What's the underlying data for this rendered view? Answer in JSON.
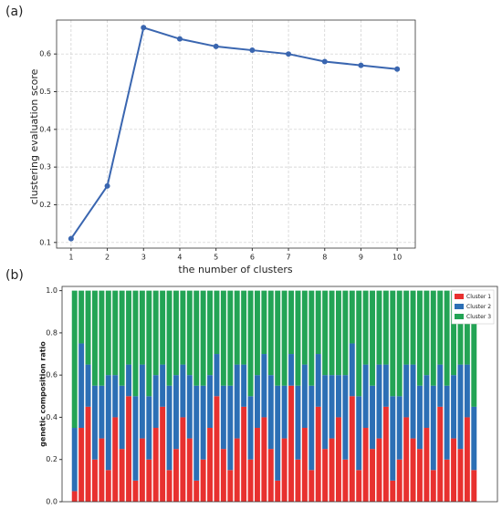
{
  "chart_data": [
    {
      "type": "line",
      "panel_label": "(a)",
      "xlabel": "the number of clusters",
      "ylabel": "clustering evaluation score",
      "x": [
        1,
        2,
        3,
        4,
        5,
        6,
        7,
        8,
        9,
        10
      ],
      "values": [
        0.11,
        0.25,
        0.67,
        0.64,
        0.62,
        0.61,
        0.6,
        0.58,
        0.57,
        0.56
      ],
      "color": "#3a66b0",
      "xlim": [
        0.6,
        10.5
      ],
      "ylim": [
        0.085,
        0.69
      ],
      "xticks": [
        1,
        2,
        3,
        4,
        5,
        6,
        7,
        8,
        9,
        10
      ],
      "yticks": [
        0.1,
        0.2,
        0.3,
        0.4,
        0.5,
        0.6
      ],
      "grid": true
    },
    {
      "type": "stacked_bar",
      "panel_label": "(b)",
      "ylabel": "genetic composition ratio",
      "categories": [
        null,
        null,
        null,
        null,
        null,
        null,
        null,
        null,
        null,
        null,
        null,
        null,
        null,
        null,
        null,
        null,
        null,
        null,
        null,
        null,
        null,
        null,
        null,
        null,
        null,
        null,
        null,
        null,
        null,
        null,
        null,
        null,
        null,
        null,
        null,
        null,
        null,
        null,
        null,
        null,
        null,
        null,
        null,
        null,
        null,
        null,
        null,
        null,
        null,
        null,
        null,
        null,
        null,
        null,
        null,
        null,
        null,
        null,
        null,
        null
      ],
      "series": [
        {
          "name": "Cluster 1",
          "color": "#e8312f",
          "values": [
            0.05,
            0.35,
            0.45,
            0.2,
            0.3,
            0.15,
            0.4,
            0.25,
            0.5,
            0.1,
            0.3,
            0.2,
            0.35,
            0.45,
            0.15,
            0.25,
            0.4,
            0.3,
            0.1,
            0.2,
            0.35,
            0.5,
            0.25,
            0.15,
            0.3,
            0.45,
            0.2,
            0.35,
            0.4,
            0.25,
            0.1,
            0.3,
            0.55,
            0.2,
            0.35,
            0.15,
            0.45,
            0.25,
            0.3,
            0.4,
            0.2,
            0.5,
            0.15,
            0.35,
            0.25,
            0.3,
            0.45,
            0.1,
            0.2,
            0.4,
            0.3,
            0.25,
            0.35,
            0.15,
            0.45,
            0.2,
            0.3,
            0.25,
            0.4,
            0.15
          ]
        },
        {
          "name": "Cluster 2",
          "color": "#2c6fb5",
          "values": [
            0.3,
            0.4,
            0.2,
            0.35,
            0.25,
            0.45,
            0.2,
            0.3,
            0.15,
            0.4,
            0.35,
            0.3,
            0.25,
            0.2,
            0.4,
            0.35,
            0.25,
            0.3,
            0.45,
            0.35,
            0.25,
            0.2,
            0.3,
            0.4,
            0.35,
            0.2,
            0.3,
            0.25,
            0.3,
            0.35,
            0.45,
            0.25,
            0.15,
            0.35,
            0.3,
            0.4,
            0.25,
            0.35,
            0.3,
            0.2,
            0.4,
            0.25,
            0.35,
            0.3,
            0.3,
            0.35,
            0.2,
            0.4,
            0.3,
            0.25,
            0.35,
            0.3,
            0.25,
            0.4,
            0.2,
            0.35,
            0.3,
            0.4,
            0.25,
            0.3
          ]
        },
        {
          "name": "Cluster 3",
          "color": "#23a455",
          "values": [
            0.65,
            0.25,
            0.35,
            0.45,
            0.45,
            0.4,
            0.4,
            0.45,
            0.35,
            0.5,
            0.35,
            0.5,
            0.4,
            0.35,
            0.45,
            0.4,
            0.35,
            0.4,
            0.45,
            0.45,
            0.4,
            0.3,
            0.45,
            0.45,
            0.35,
            0.35,
            0.5,
            0.4,
            0.3,
            0.4,
            0.45,
            0.45,
            0.3,
            0.45,
            0.35,
            0.45,
            0.3,
            0.4,
            0.4,
            0.4,
            0.4,
            0.25,
            0.5,
            0.35,
            0.45,
            0.35,
            0.35,
            0.5,
            0.5,
            0.35,
            0.35,
            0.45,
            0.4,
            0.45,
            0.35,
            0.45,
            0.4,
            0.35,
            0.35,
            0.55
          ]
        }
      ],
      "ylim": [
        0,
        1.02
      ],
      "yticks": [
        {
          "value": 0,
          "label": "0.0"
        },
        0.2,
        0.4,
        0.6,
        0.8,
        {
          "value": 1,
          "label": "1.0"
        }
      ],
      "legend": "upper right"
    }
  ]
}
